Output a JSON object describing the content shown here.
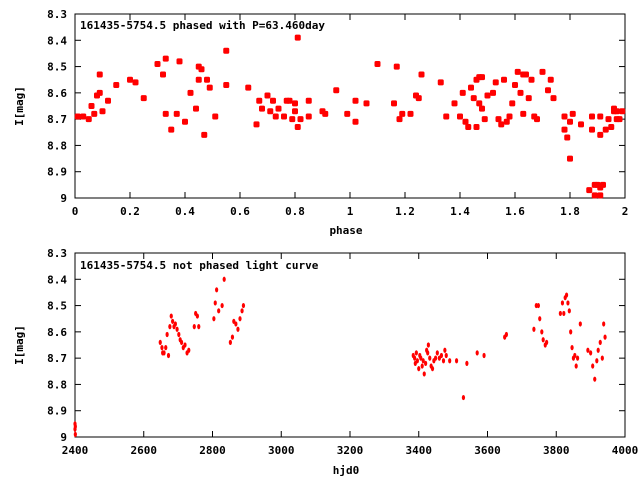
{
  "chart_data": [
    {
      "type": "scatter",
      "title": "161435-5754.5 phased with P=63.460day",
      "xlabel": "phase",
      "ylabel": "I[mag]",
      "xlim": [
        0,
        2
      ],
      "ylim": [
        8.3,
        9
      ],
      "y_inverted": true,
      "grid": false,
      "marker": "star",
      "color": "#ff0000",
      "x_ticks": [
        "0",
        "0.2",
        "0.4",
        "0.6",
        "0.8",
        "1",
        "1.2",
        "1.4",
        "1.6",
        "1.8",
        "2"
      ],
      "y_ticks": [
        "8.3",
        "8.4",
        "8.5",
        "8.6",
        "8.7",
        "8.8",
        "8.9",
        "9"
      ],
      "x_tick_values": [
        0,
        0.2,
        0.4,
        0.6,
        0.8,
        1,
        1.2,
        1.4,
        1.6,
        1.8,
        2
      ],
      "y_tick_values": [
        8.3,
        8.4,
        8.5,
        8.6,
        8.7,
        8.8,
        8.9,
        9
      ],
      "points": [
        [
          0.01,
          8.69
        ],
        [
          0.03,
          8.69
        ],
        [
          0.05,
          8.7
        ],
        [
          0.06,
          8.65
        ],
        [
          0.07,
          8.68
        ],
        [
          0.08,
          8.61
        ],
        [
          0.09,
          8.6
        ],
        [
          0.09,
          8.53
        ],
        [
          0.1,
          8.67
        ],
        [
          0.12,
          8.63
        ],
        [
          0.15,
          8.57
        ],
        [
          0.2,
          8.55
        ],
        [
          0.22,
          8.56
        ],
        [
          0.25,
          8.62
        ],
        [
          0.3,
          8.49
        ],
        [
          0.32,
          8.53
        ],
        [
          0.33,
          8.47
        ],
        [
          0.33,
          8.68
        ],
        [
          0.35,
          8.74
        ],
        [
          0.37,
          8.68
        ],
        [
          0.38,
          8.48
        ],
        [
          0.4,
          8.71
        ],
        [
          0.42,
          8.6
        ],
        [
          0.44,
          8.66
        ],
        [
          0.45,
          8.5
        ],
        [
          0.45,
          8.55
        ],
        [
          0.46,
          8.51
        ],
        [
          0.47,
          8.76
        ],
        [
          0.48,
          8.55
        ],
        [
          0.49,
          8.58
        ],
        [
          0.51,
          8.69
        ],
        [
          0.55,
          8.44
        ],
        [
          0.55,
          8.57
        ],
        [
          0.63,
          8.58
        ],
        [
          0.66,
          8.72
        ],
        [
          0.67,
          8.63
        ],
        [
          0.68,
          8.66
        ],
        [
          0.7,
          8.61
        ],
        [
          0.71,
          8.67
        ],
        [
          0.72,
          8.63
        ],
        [
          0.73,
          8.69
        ],
        [
          0.74,
          8.66
        ],
        [
          0.76,
          8.69
        ],
        [
          0.77,
          8.63
        ],
        [
          0.78,
          8.63
        ],
        [
          0.79,
          8.7
        ],
        [
          0.8,
          8.64
        ],
        [
          0.8,
          8.67
        ],
        [
          0.81,
          8.73
        ],
        [
          0.81,
          8.39
        ],
        [
          0.82,
          8.7
        ],
        [
          0.85,
          8.69
        ],
        [
          0.85,
          8.63
        ],
        [
          0.9,
          8.67
        ],
        [
          0.91,
          8.68
        ],
        [
          0.95,
          8.59
        ],
        [
          0.99,
          8.68
        ],
        [
          1.02,
          8.63
        ],
        [
          1.02,
          8.71
        ],
        [
          1.06,
          8.64
        ],
        [
          1.1,
          8.49
        ],
        [
          1.16,
          8.64
        ],
        [
          1.17,
          8.5
        ],
        [
          1.18,
          8.7
        ],
        [
          1.19,
          8.68
        ],
        [
          1.22,
          8.68
        ],
        [
          1.24,
          8.61
        ],
        [
          1.25,
          8.62
        ],
        [
          1.26,
          8.53
        ],
        [
          1.33,
          8.56
        ],
        [
          1.35,
          8.69
        ],
        [
          1.38,
          8.64
        ],
        [
          1.4,
          8.69
        ],
        [
          1.41,
          8.6
        ],
        [
          1.42,
          8.71
        ],
        [
          1.43,
          8.73
        ],
        [
          1.44,
          8.58
        ],
        [
          1.45,
          8.62
        ],
        [
          1.46,
          8.55
        ],
        [
          1.46,
          8.73
        ],
        [
          1.47,
          8.54
        ],
        [
          1.47,
          8.64
        ],
        [
          1.48,
          8.66
        ],
        [
          1.48,
          8.54
        ],
        [
          1.49,
          8.7
        ],
        [
          1.5,
          8.61
        ],
        [
          1.52,
          8.6
        ],
        [
          1.53,
          8.56
        ],
        [
          1.54,
          8.7
        ],
        [
          1.55,
          8.72
        ],
        [
          1.56,
          8.55
        ],
        [
          1.57,
          8.71
        ],
        [
          1.58,
          8.69
        ],
        [
          1.59,
          8.64
        ],
        [
          1.6,
          8.57
        ],
        [
          1.61,
          8.52
        ],
        [
          1.62,
          8.6
        ],
        [
          1.63,
          8.53
        ],
        [
          1.63,
          8.68
        ],
        [
          1.64,
          8.53
        ],
        [
          1.65,
          8.62
        ],
        [
          1.66,
          8.55
        ],
        [
          1.67,
          8.69
        ],
        [
          1.68,
          8.7
        ],
        [
          1.7,
          8.52
        ],
        [
          1.72,
          8.59
        ],
        [
          1.73,
          8.55
        ],
        [
          1.74,
          8.62
        ],
        [
          1.78,
          8.69
        ],
        [
          1.78,
          8.74
        ],
        [
          1.79,
          8.77
        ],
        [
          1.8,
          8.85
        ],
        [
          1.8,
          8.71
        ],
        [
          1.81,
          8.68
        ],
        [
          1.84,
          8.72
        ],
        [
          1.87,
          8.97
        ],
        [
          1.88,
          8.69
        ],
        [
          1.88,
          8.74
        ],
        [
          1.89,
          8.99
        ],
        [
          1.89,
          8.95
        ],
        [
          1.9,
          8.95
        ],
        [
          1.91,
          8.96
        ],
        [
          1.91,
          8.99
        ],
        [
          1.91,
          8.69
        ],
        [
          1.91,
          8.76
        ],
        [
          1.92,
          8.95
        ],
        [
          1.93,
          8.74
        ],
        [
          1.94,
          8.7
        ],
        [
          1.95,
          8.73
        ],
        [
          1.96,
          8.67
        ],
        [
          1.96,
          8.66
        ],
        [
          1.97,
          8.67
        ],
        [
          1.97,
          8.7
        ],
        [
          1.98,
          8.7
        ],
        [
          1.99,
          8.67
        ]
      ]
    },
    {
      "type": "scatter",
      "title": "161435-5754.5 not phased light curve",
      "xlabel": "hjd0",
      "ylabel": "I[mag]",
      "xlim": [
        2400,
        4000
      ],
      "ylim": [
        8.3,
        9
      ],
      "y_inverted": true,
      "grid": false,
      "marker": "dot",
      "color": "#ff0000",
      "x_ticks": [
        "2400",
        "2600",
        "2800",
        "3000",
        "3200",
        "3400",
        "3600",
        "3800",
        "4000"
      ],
      "y_ticks": [
        "8.3",
        "8.4",
        "8.5",
        "8.6",
        "8.7",
        "8.8",
        "8.9",
        "9"
      ],
      "x_tick_values": [
        2400,
        2600,
        2800,
        3000,
        3200,
        3400,
        3600,
        3800,
        4000
      ],
      "y_tick_values": [
        8.3,
        8.4,
        8.5,
        8.6,
        8.7,
        8.8,
        8.9,
        9
      ],
      "points": [
        [
          2400,
          8.95
        ],
        [
          2400,
          8.97
        ],
        [
          2401,
          8.99
        ],
        [
          2401,
          8.96
        ],
        [
          2648,
          8.64
        ],
        [
          2653,
          8.66
        ],
        [
          2655,
          8.68
        ],
        [
          2659,
          8.68
        ],
        [
          2664,
          8.66
        ],
        [
          2668,
          8.61
        ],
        [
          2672,
          8.69
        ],
        [
          2676,
          8.58
        ],
        [
          2680,
          8.54
        ],
        [
          2684,
          8.56
        ],
        [
          2688,
          8.58
        ],
        [
          2692,
          8.57
        ],
        [
          2697,
          8.59
        ],
        [
          2702,
          8.61
        ],
        [
          2706,
          8.63
        ],
        [
          2710,
          8.64
        ],
        [
          2715,
          8.66
        ],
        [
          2720,
          8.65
        ],
        [
          2726,
          8.68
        ],
        [
          2731,
          8.67
        ],
        [
          2747,
          8.58
        ],
        [
          2751,
          8.53
        ],
        [
          2756,
          8.54
        ],
        [
          2760,
          8.58
        ],
        [
          2804,
          8.55
        ],
        [
          2808,
          8.49
        ],
        [
          2812,
          8.44
        ],
        [
          2818,
          8.52
        ],
        [
          2828,
          8.5
        ],
        [
          2834,
          8.4
        ],
        [
          2852,
          8.64
        ],
        [
          2858,
          8.62
        ],
        [
          2862,
          8.56
        ],
        [
          2868,
          8.57
        ],
        [
          2874,
          8.59
        ],
        [
          2880,
          8.55
        ],
        [
          2886,
          8.52
        ],
        [
          2890,
          8.5
        ],
        [
          3384,
          8.69
        ],
        [
          3388,
          8.7
        ],
        [
          3390,
          8.72
        ],
        [
          3393,
          8.68
        ],
        [
          3396,
          8.71
        ],
        [
          3400,
          8.74
        ],
        [
          3403,
          8.69
        ],
        [
          3406,
          8.7
        ],
        [
          3410,
          8.73
        ],
        [
          3413,
          8.71
        ],
        [
          3416,
          8.76
        ],
        [
          3420,
          8.72
        ],
        [
          3423,
          8.67
        ],
        [
          3426,
          8.68
        ],
        [
          3428,
          8.65
        ],
        [
          3432,
          8.7
        ],
        [
          3436,
          8.73
        ],
        [
          3440,
          8.74
        ],
        [
          3444,
          8.71
        ],
        [
          3449,
          8.7
        ],
        [
          3454,
          8.68
        ],
        [
          3460,
          8.7
        ],
        [
          3466,
          8.69
        ],
        [
          3472,
          8.71
        ],
        [
          3476,
          8.67
        ],
        [
          3480,
          8.69
        ],
        [
          3490,
          8.71
        ],
        [
          3510,
          8.71
        ],
        [
          3530,
          8.85
        ],
        [
          3540,
          8.72
        ],
        [
          3570,
          8.68
        ],
        [
          3590,
          8.69
        ],
        [
          3650,
          8.62
        ],
        [
          3655,
          8.61
        ],
        [
          3735,
          8.59
        ],
        [
          3742,
          8.5
        ],
        [
          3748,
          8.5
        ],
        [
          3752,
          8.55
        ],
        [
          3758,
          8.6
        ],
        [
          3762,
          8.63
        ],
        [
          3768,
          8.65
        ],
        [
          3772,
          8.64
        ],
        [
          3812,
          8.53
        ],
        [
          3818,
          8.49
        ],
        [
          3822,
          8.53
        ],
        [
          3826,
          8.47
        ],
        [
          3830,
          8.46
        ],
        [
          3834,
          8.49
        ],
        [
          3838,
          8.52
        ],
        [
          3842,
          8.6
        ],
        [
          3846,
          8.66
        ],
        [
          3850,
          8.7
        ],
        [
          3854,
          8.69
        ],
        [
          3858,
          8.73
        ],
        [
          3862,
          8.7
        ],
        [
          3870,
          8.57
        ],
        [
          3892,
          8.67
        ],
        [
          3900,
          8.68
        ],
        [
          3906,
          8.73
        ],
        [
          3912,
          8.78
        ],
        [
          3918,
          8.71
        ],
        [
          3922,
          8.67
        ],
        [
          3928,
          8.64
        ],
        [
          3934,
          8.7
        ],
        [
          3938,
          8.57
        ],
        [
          3942,
          8.62
        ]
      ]
    }
  ]
}
